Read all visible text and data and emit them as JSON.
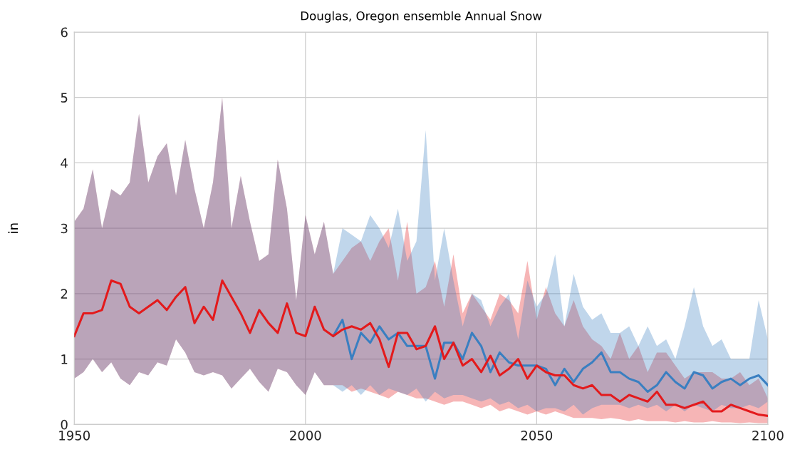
{
  "chart_data": {
    "type": "line",
    "title": "Douglas, Oregon ensemble Annual Snow",
    "ylabel": "in",
    "x": [
      1950,
      1952,
      1954,
      1956,
      1958,
      1960,
      1962,
      1964,
      1966,
      1968,
      1970,
      1972,
      1974,
      1976,
      1978,
      1980,
      1982,
      1984,
      1986,
      1988,
      1990,
      1992,
      1994,
      1996,
      1998,
      2000,
      2002,
      2004,
      2006,
      2008,
      2010,
      2012,
      2014,
      2016,
      2018,
      2020,
      2022,
      2024,
      2026,
      2028,
      2030,
      2032,
      2034,
      2036,
      2038,
      2040,
      2042,
      2044,
      2046,
      2048,
      2050,
      2052,
      2054,
      2056,
      2058,
      2060,
      2062,
      2064,
      2066,
      2068,
      2070,
      2072,
      2074,
      2076,
      2078,
      2080,
      2082,
      2084,
      2086,
      2088,
      2090,
      2092,
      2094,
      2096,
      2098,
      2100
    ],
    "series": [
      {
        "color": "#e31a1c",
        "values": [
          1.35,
          1.7,
          1.7,
          1.75,
          2.2,
          2.15,
          1.8,
          1.7,
          1.8,
          1.9,
          1.75,
          1.95,
          2.1,
          1.55,
          1.8,
          1.6,
          2.2,
          1.95,
          1.7,
          1.4,
          1.75,
          1.55,
          1.4,
          1.85,
          1.4,
          1.35,
          1.8,
          1.45,
          1.35,
          1.45,
          1.5,
          1.45,
          1.55,
          1.3,
          0.88,
          1.4,
          1.4,
          1.15,
          1.2,
          1.5,
          1.0,
          1.25,
          0.9,
          1.0,
          0.8,
          1.05,
          0.75,
          0.85,
          1.0,
          0.7,
          0.9,
          0.8,
          0.75,
          0.75,
          0.6,
          0.55,
          0.6,
          0.45,
          0.45,
          0.35,
          0.45,
          0.4,
          0.35,
          0.5,
          0.3,
          0.3,
          0.25,
          0.3,
          0.35,
          0.2,
          0.2,
          0.3,
          0.25,
          0.2,
          0.15,
          0.13
        ],
        "upper": [
          3.1,
          3.3,
          3.9,
          3.0,
          3.6,
          3.5,
          3.7,
          4.75,
          3.7,
          4.1,
          4.3,
          3.5,
          4.35,
          3.6,
          3.0,
          3.7,
          5.0,
          3.0,
          3.8,
          3.1,
          2.5,
          2.6,
          4.05,
          3.3,
          1.9,
          3.2,
          2.6,
          3.1,
          2.3,
          2.5,
          2.7,
          2.8,
          2.5,
          2.8,
          3.0,
          2.2,
          3.1,
          2.0,
          2.1,
          2.5,
          1.8,
          2.6,
          1.7,
          2.0,
          1.8,
          1.6,
          2.0,
          1.9,
          1.7,
          2.5,
          1.6,
          2.1,
          1.7,
          1.5,
          1.9,
          1.5,
          1.3,
          1.2,
          1.0,
          1.4,
          1.0,
          1.2,
          0.8,
          1.1,
          1.1,
          0.9,
          0.7,
          0.8,
          0.8,
          0.8,
          0.7,
          0.7,
          0.8,
          0.6,
          0.7,
          0.4
        ],
        "lower": [
          0.7,
          0.8,
          1.0,
          0.8,
          0.95,
          0.7,
          0.6,
          0.8,
          0.75,
          0.95,
          0.9,
          1.3,
          1.1,
          0.8,
          0.75,
          0.8,
          0.75,
          0.55,
          0.7,
          0.85,
          0.65,
          0.5,
          0.85,
          0.8,
          0.6,
          0.45,
          0.8,
          0.6,
          0.6,
          0.6,
          0.5,
          0.55,
          0.5,
          0.45,
          0.4,
          0.5,
          0.45,
          0.4,
          0.4,
          0.35,
          0.3,
          0.35,
          0.35,
          0.3,
          0.25,
          0.3,
          0.2,
          0.25,
          0.2,
          0.15,
          0.2,
          0.15,
          0.2,
          0.15,
          0.1,
          0.1,
          0.1,
          0.08,
          0.1,
          0.08,
          0.05,
          0.08,
          0.05,
          0.05,
          0.05,
          0.03,
          0.05,
          0.03,
          0.03,
          0.05,
          0.03,
          0.03,
          0.02,
          0.03,
          0.02,
          0.02
        ]
      },
      {
        "color": "#3a7fc1",
        "values": [
          null,
          null,
          null,
          null,
          null,
          null,
          null,
          null,
          null,
          null,
          null,
          null,
          null,
          null,
          null,
          null,
          null,
          null,
          null,
          null,
          null,
          null,
          null,
          null,
          null,
          null,
          null,
          null,
          1.35,
          1.6,
          1.0,
          1.4,
          1.25,
          1.5,
          1.3,
          1.4,
          1.2,
          1.2,
          1.2,
          0.7,
          1.25,
          1.25,
          1.0,
          1.4,
          1.2,
          0.8,
          1.1,
          0.95,
          0.9,
          0.9,
          0.9,
          0.85,
          0.6,
          0.85,
          0.65,
          0.85,
          0.95,
          1.1,
          0.8,
          0.8,
          0.7,
          0.65,
          0.5,
          0.6,
          0.8,
          0.65,
          0.55,
          0.8,
          0.75,
          0.55,
          0.65,
          0.7,
          0.6,
          0.7,
          0.75,
          0.6
        ],
        "upper": [
          3.1,
          3.3,
          3.9,
          3.0,
          3.6,
          3.5,
          3.7,
          4.75,
          3.7,
          4.1,
          4.3,
          3.5,
          4.35,
          3.6,
          3.0,
          3.7,
          5.0,
          3.0,
          3.8,
          3.1,
          2.5,
          2.6,
          4.05,
          3.3,
          1.9,
          3.2,
          2.6,
          3.1,
          2.3,
          3.0,
          2.9,
          2.8,
          3.2,
          3.0,
          2.7,
          3.3,
          2.5,
          2.8,
          4.5,
          2.2,
          3.0,
          2.2,
          1.5,
          2.0,
          1.9,
          1.5,
          1.8,
          2.0,
          1.3,
          2.2,
          1.8,
          2.0,
          2.6,
          1.5,
          2.3,
          1.8,
          1.6,
          1.7,
          1.4,
          1.4,
          1.5,
          1.2,
          1.5,
          1.2,
          1.3,
          1.0,
          1.5,
          2.1,
          1.5,
          1.2,
          1.3,
          1.0,
          1.0,
          1.0,
          1.9,
          1.3
        ],
        "lower": [
          0.7,
          0.8,
          1.0,
          0.8,
          0.95,
          0.7,
          0.6,
          0.8,
          0.75,
          0.95,
          0.9,
          1.3,
          1.1,
          0.8,
          0.75,
          0.8,
          0.75,
          0.55,
          0.7,
          0.85,
          0.65,
          0.5,
          0.85,
          0.8,
          0.6,
          0.45,
          0.8,
          0.6,
          0.6,
          0.5,
          0.6,
          0.45,
          0.6,
          0.45,
          0.55,
          0.5,
          0.45,
          0.55,
          0.35,
          0.5,
          0.4,
          0.45,
          0.45,
          0.4,
          0.35,
          0.4,
          0.3,
          0.35,
          0.25,
          0.3,
          0.2,
          0.25,
          0.25,
          0.2,
          0.3,
          0.15,
          0.25,
          0.3,
          0.3,
          0.3,
          0.25,
          0.3,
          0.25,
          0.3,
          0.2,
          0.3,
          0.2,
          0.3,
          0.25,
          0.2,
          0.3,
          0.25,
          0.25,
          0.3,
          0.25,
          0.35
        ]
      }
    ],
    "xlim": [
      1950,
      2100
    ],
    "xticks": [
      1950,
      2000,
      2050,
      2100
    ],
    "ylim": [
      0,
      6
    ],
    "yticks": [
      0,
      1,
      2,
      3,
      4,
      5,
      6
    ],
    "grid": true,
    "marker": "none",
    "line_style": "solid"
  }
}
